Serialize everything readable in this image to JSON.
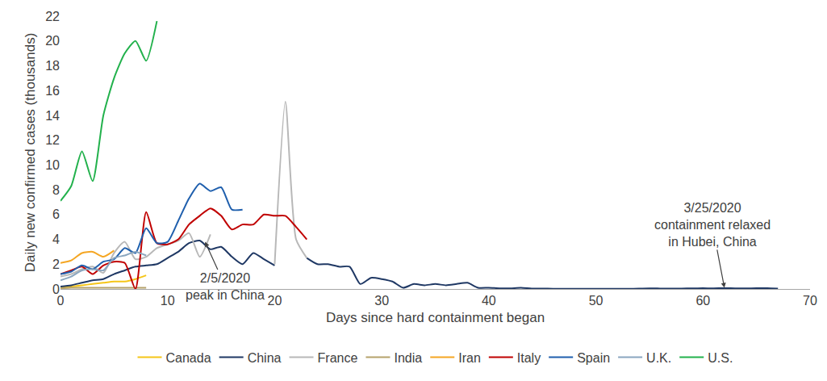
{
  "chart_data": {
    "type": "line",
    "x_label": "Days since hard containment began",
    "y_label": "Daily new confirmed cases (thousands)",
    "xlim": [
      0,
      70
    ],
    "xticks": [
      0,
      10,
      20,
      30,
      40,
      50,
      60,
      70
    ],
    "ylim": [
      0,
      22
    ],
    "yticks": [
      0,
      2,
      4,
      6,
      8,
      10,
      12,
      14,
      16,
      18,
      20,
      22
    ],
    "grid": false,
    "legend": "bottom",
    "series": [
      {
        "name": "Canada",
        "color": "#f5c518",
        "x": [
          0,
          1,
          2,
          3,
          4,
          5,
          6,
          7,
          8
        ],
        "values": [
          0.1,
          0.2,
          0.3,
          0.4,
          0.5,
          0.6,
          0.6,
          0.8,
          1.1
        ]
      },
      {
        "name": "China",
        "color": "#1f3864",
        "x": [
          0,
          1,
          2,
          3,
          4,
          5,
          6,
          7,
          8,
          9,
          10,
          11,
          12,
          13,
          14,
          15,
          16,
          17,
          18,
          19,
          20,
          21,
          22,
          23,
          24,
          25,
          26,
          27,
          28,
          29,
          30,
          31,
          32,
          33,
          34,
          35,
          36,
          37,
          38,
          39,
          40,
          41,
          42,
          43,
          44,
          45,
          46,
          47,
          48,
          49,
          50,
          51,
          52,
          53,
          54,
          55,
          56,
          57,
          58,
          59,
          60,
          61,
          62,
          63,
          64,
          65,
          66,
          67
        ],
        "values": [
          0.2,
          0.3,
          0.5,
          0.7,
          0.8,
          1.2,
          1.5,
          1.8,
          1.9,
          2.0,
          2.5,
          3.0,
          3.7,
          3.9,
          3.2,
          3.4,
          2.6,
          2.0,
          2.9,
          2.4,
          1.9,
          null,
          null,
          2.5,
          2.0,
          2.0,
          1.8,
          1.8,
          0.4,
          0.9,
          0.8,
          0.6,
          0.1,
          0.4,
          0.3,
          0.4,
          0.3,
          0.4,
          0.5,
          0.1,
          0.1,
          0.05,
          0.05,
          0.1,
          0.03,
          0.03,
          0.02,
          0.02,
          0.02,
          0.02,
          0.02,
          0.02,
          0.02,
          0.02,
          0.03,
          0.05,
          0.04,
          0.03,
          0.04,
          0.05,
          0.06,
          0.05,
          0.07,
          0.05,
          0.05,
          0.06,
          0.07,
          0.03
        ]
      },
      {
        "name": "France",
        "color": "#b8b8b8",
        "x": [
          0,
          1,
          2,
          3,
          4,
          5,
          6,
          7,
          8,
          9,
          10,
          11,
          12,
          13,
          14,
          15,
          20,
          21,
          22,
          23
        ],
        "values": [
          1.0,
          1.2,
          1.6,
          1.8,
          1.3,
          2.9,
          3.8,
          2.4,
          2.6,
          3.3,
          3.6,
          3.9,
          4.5,
          2.6,
          4.4,
          null,
          2.0,
          15.1,
          4.0,
          2.5
        ]
      },
      {
        "name": "India",
        "color": "#b5a26b",
        "x": [
          0,
          1,
          2,
          3,
          4,
          5,
          6,
          7,
          8
        ],
        "values": [
          0.05,
          0.1,
          0.1,
          0.1,
          0.1,
          0.1,
          0.1,
          0.1,
          0.1
        ]
      },
      {
        "name": "Iran",
        "color": "#f5a623",
        "x": [
          0,
          1,
          2,
          3,
          4,
          5
        ],
        "values": [
          2.1,
          2.3,
          2.9,
          3.0,
          2.6,
          3.1
        ]
      },
      {
        "name": "Italy",
        "color": "#c00000",
        "x": [
          0,
          1,
          2,
          3,
          4,
          5,
          6,
          7,
          8,
          9,
          10,
          11,
          12,
          13,
          14,
          15,
          16,
          17,
          18,
          19,
          20,
          21,
          22,
          23
        ],
        "values": [
          1.2,
          1.5,
          1.8,
          1.2,
          1.9,
          2.2,
          2.1,
          0.0,
          6.2,
          3.7,
          3.6,
          4.0,
          5.2,
          5.9,
          6.5,
          5.9,
          4.8,
          5.2,
          5.2,
          6.0,
          5.9,
          5.9,
          5.0,
          4.0
        ]
      },
      {
        "name": "Spain",
        "color": "#1f5fad",
        "x": [
          0,
          1,
          2,
          3,
          4,
          5,
          6,
          7,
          8,
          9,
          10,
          11,
          12,
          13,
          14,
          15,
          16,
          17
        ],
        "values": [
          1.2,
          1.4,
          1.9,
          1.6,
          2.2,
          2.4,
          3.3,
          2.9,
          4.9,
          3.7,
          3.8,
          5.5,
          7.3,
          8.5,
          7.9,
          8.2,
          6.4,
          6.4
        ]
      },
      {
        "name": "U.K.",
        "color": "#8aa6bf",
        "x": [
          0,
          1,
          2,
          3,
          4,
          5,
          6,
          7,
          8
        ],
        "values": [
          0.7,
          1.0,
          1.5,
          1.6,
          1.5,
          2.5,
          2.7,
          3.0,
          2.7
        ]
      },
      {
        "name": "U.S.",
        "color": "#22b14c",
        "x": [
          0,
          1,
          2,
          3,
          4,
          5,
          6,
          7,
          8,
          9
        ],
        "values": [
          7.1,
          8.3,
          11.1,
          8.7,
          14.0,
          17.0,
          19.0,
          20.0,
          18.4,
          21.6
        ]
      }
    ],
    "annotations": [
      {
        "lines": [
          "2/5/2020",
          "peak in China"
        ],
        "x": 13.5,
        "y": 3.8
      },
      {
        "lines": [
          "3/25/2020",
          "containment relaxed",
          "in Hubei, China"
        ],
        "x": 62,
        "y": 0.1
      }
    ]
  }
}
